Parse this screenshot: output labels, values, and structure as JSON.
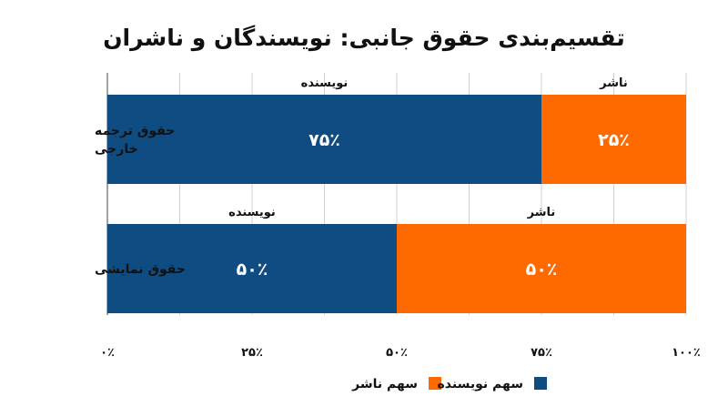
{
  "chart_data": {
    "type": "bar",
    "stacked": true,
    "orientation": "horizontal",
    "title": "تقسیم‌بندی حقوق جانبی: نویسندگان و ناشران",
    "categories": [
      "حقوق ترجمه خارجی",
      "حقوق نمایشی"
    ],
    "category_lines": [
      [
        "حقوق ترجمه",
        "خارجی"
      ],
      [
        "حقوق نمایشی"
      ]
    ],
    "series": [
      {
        "name": "سهم نویسنده",
        "segment_label": "نویسنده",
        "color": "#0f4c81",
        "values": [
          75,
          50
        ]
      },
      {
        "name": "سهم ناشر",
        "segment_label": "ناشر",
        "color": "#ff6a00",
        "values": [
          25,
          50
        ]
      }
    ],
    "value_labels": [
      [
        "۷۵٪",
        "۲۵٪"
      ],
      [
        "۵۰٪",
        "۵۰٪"
      ]
    ],
    "xlim": [
      0,
      100
    ],
    "xticks": [
      0,
      25,
      50,
      75,
      100
    ],
    "xtick_labels": [
      "۰٪",
      "۲۵٪",
      "۵۰٪",
      "۷۵٪",
      "۱۰۰٪"
    ],
    "grid": true,
    "legend_position": "bottom"
  }
}
